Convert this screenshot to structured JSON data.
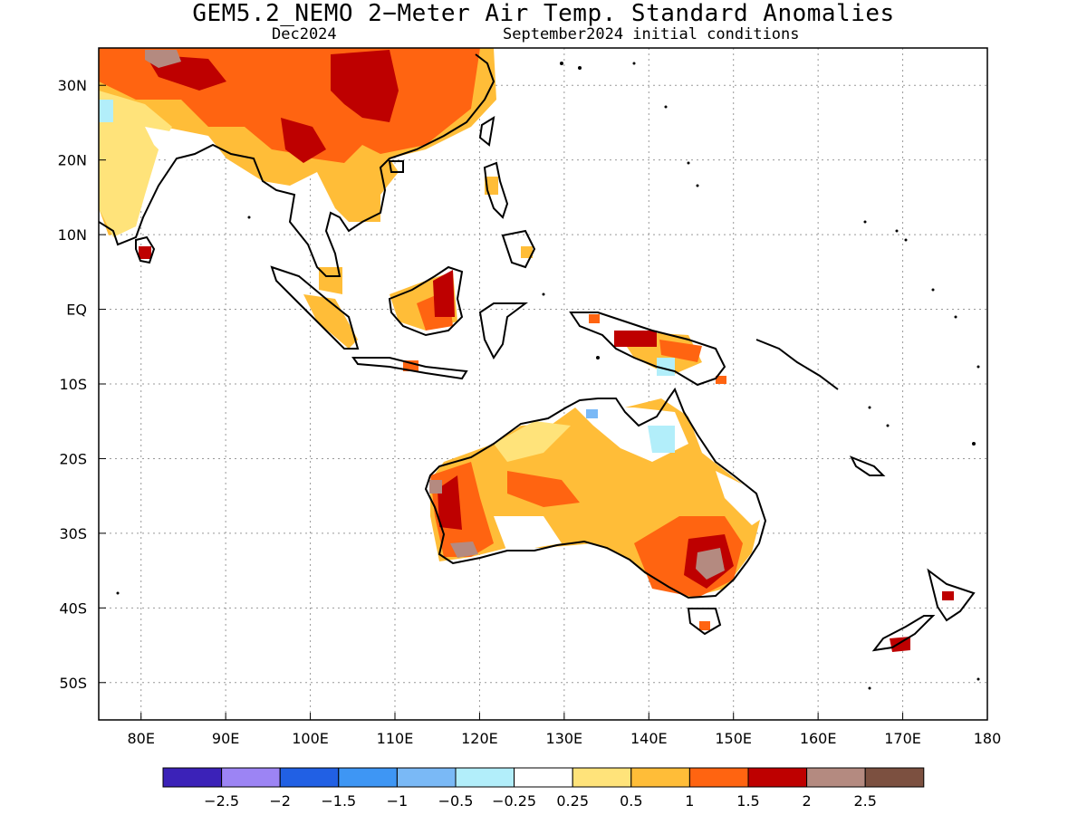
{
  "title": "GEM5.2_NEMO 2−Meter Air Temp. Standard Anomalies",
  "subtitle_left": "Dec2024",
  "subtitle_right": "September2024 initial conditions",
  "map": {
    "lon_range": [
      75,
      180
    ],
    "lat_range": [
      -55,
      35
    ],
    "x_ticks": [
      {
        "lon": 80,
        "label": "80E"
      },
      {
        "lon": 90,
        "label": "90E"
      },
      {
        "lon": 100,
        "label": "100E"
      },
      {
        "lon": 110,
        "label": "110E"
      },
      {
        "lon": 120,
        "label": "120E"
      },
      {
        "lon": 130,
        "label": "130E"
      },
      {
        "lon": 140,
        "label": "140E"
      },
      {
        "lon": 150,
        "label": "150E"
      },
      {
        "lon": 160,
        "label": "160E"
      },
      {
        "lon": 170,
        "label": "170E"
      },
      {
        "lon": 180,
        "label": "180"
      }
    ],
    "y_ticks": [
      {
        "lat": 30,
        "label": "30N"
      },
      {
        "lat": 20,
        "label": "20N"
      },
      {
        "lat": 10,
        "label": "10N"
      },
      {
        "lat": 0,
        "label": "EQ"
      },
      {
        "lat": -10,
        "label": "10S"
      },
      {
        "lat": -20,
        "label": "20S"
      },
      {
        "lat": -30,
        "label": "30S"
      },
      {
        "lat": -40,
        "label": "40S"
      },
      {
        "lat": -50,
        "label": "50S"
      }
    ],
    "grid": "dotted"
  },
  "colorbar": {
    "colors": [
      "#3b22b8",
      "#9c84f4",
      "#2160e4",
      "#3e96f4",
      "#7ab9f6",
      "#b2eefa",
      "#ffffff",
      "#ffe37a",
      "#ffbd38",
      "#ff6411",
      "#be0000",
      "#b48a80",
      "#7c5040"
    ],
    "labels": [
      "−2.5",
      "−2",
      "−1.5",
      "−1",
      "−0.5",
      "−0.25",
      "0.25",
      "0.5",
      "1",
      "1.5",
      "2",
      "2.5"
    ]
  },
  "anomaly_regions": [
    {
      "region": "South Asia / China",
      "level": 1.5,
      "color": "#ff6411"
    },
    {
      "region": "Southwest China",
      "level": 2.0,
      "color": "#be0000"
    },
    {
      "region": "Southeast Asia",
      "level": 1.0,
      "color": "#ffbd38"
    },
    {
      "region": "Borneo",
      "level": 2.0,
      "color": "#be0000"
    },
    {
      "region": "New Guinea",
      "level": 2.0,
      "color": "#be0000"
    },
    {
      "region": "Australia",
      "level": 1.0,
      "color": "#ffbd38"
    },
    {
      "region": "Southeast Australia",
      "level": 2.5,
      "color": "#b48a80"
    },
    {
      "region": "Southwest Australia",
      "level": 2.5,
      "color": "#b48a80"
    },
    {
      "region": "Northern Australia",
      "level": -0.5,
      "color": "#b2eefa"
    },
    {
      "region": "New Zealand",
      "level": 2.0,
      "color": "#be0000"
    }
  ]
}
